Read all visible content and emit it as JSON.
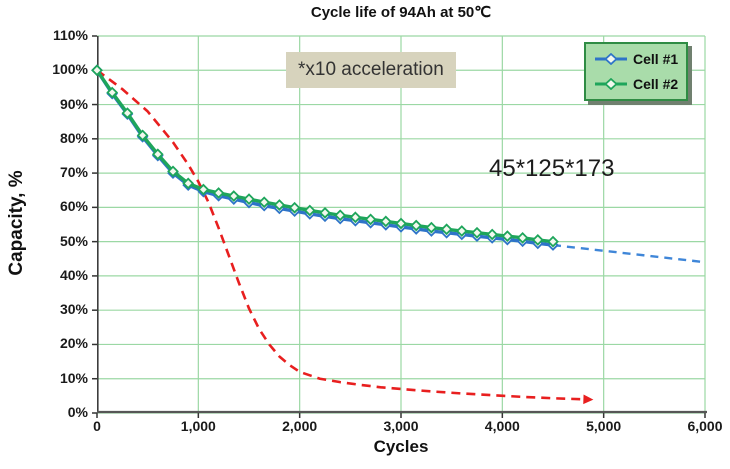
{
  "annotations": {
    "acceleration_note": "*x10 acceleration",
    "dimensions_note": "45*125*173"
  },
  "legend": {
    "items": [
      {
        "label": "Cell #1",
        "color": "#2e74c8"
      },
      {
        "label": "Cell #2",
        "color": "#1ea55b"
      }
    ]
  },
  "colors": {
    "grid": "#9bd8a4",
    "axis_left": "#3d3d3d",
    "axis_bottom": "#565656",
    "tick": "#333333",
    "marker_fill": "#f2f8ee",
    "legend_bg": "#a9dcaa",
    "legend_border": "#2f8c44",
    "legend_shadow": "#70806f",
    "note_bg": "#d7d3bd",
    "cell1": "#2e74c8",
    "cell2": "#1ea55b",
    "projection": "#3f86d8",
    "acceleration": "#e81f1f"
  },
  "chart_data": {
    "type": "line",
    "title": "Cycle life of 94Ah at  50℃",
    "xlabel": "Cycles",
    "ylabel": "Capacity, %",
    "xlim": [
      0,
      6000
    ],
    "ylim": [
      0,
      110
    ],
    "grid": true,
    "legend_position": "top-right-inside",
    "x_ticks": [
      {
        "value": 0,
        "label": "0"
      },
      {
        "value": 1000,
        "label": "1,000"
      },
      {
        "value": 2000,
        "label": "2,000"
      },
      {
        "value": 3000,
        "label": "3,000"
      },
      {
        "value": 4000,
        "label": "4,000"
      },
      {
        "value": 5000,
        "label": "5,000"
      },
      {
        "value": 6000,
        "label": "6,000"
      }
    ],
    "y_ticks": [
      {
        "value": 0,
        "label": "0%"
      },
      {
        "value": 10,
        "label": "10%"
      },
      {
        "value": 20,
        "label": "20%"
      },
      {
        "value": 30,
        "label": "30%"
      },
      {
        "value": 40,
        "label": "40%"
      },
      {
        "value": 50,
        "label": "50%"
      },
      {
        "value": 60,
        "label": "60%"
      },
      {
        "value": 70,
        "label": "70%"
      },
      {
        "value": 80,
        "label": "80%"
      },
      {
        "value": 90,
        "label": "90%"
      },
      {
        "value": 100,
        "label": "100%"
      },
      {
        "value": 110,
        "label": "110%"
      }
    ],
    "series": [
      {
        "name": "x10-acceleration-reference",
        "style": "dashed",
        "dash": [
          9,
          6
        ],
        "width": 2.6,
        "color": "#e81f1f",
        "arrow_end": true,
        "x": [
          0,
          250,
          500,
          750,
          900,
          1000,
          1100,
          1200,
          1300,
          1400,
          1500,
          1600,
          1700,
          1800,
          1900,
          2000,
          2200,
          2400,
          2600,
          2800,
          3000,
          3300,
          3600,
          3900,
          4200,
          4500,
          4800
        ],
        "y": [
          100,
          94.5,
          88,
          79,
          72.5,
          67.5,
          61.5,
          54,
          46,
          38,
          30.5,
          24.5,
          20,
          16.5,
          14,
          12,
          10,
          9,
          8.2,
          7.5,
          7,
          6.3,
          5.7,
          5.2,
          4.7,
          4.3,
          4
        ]
      },
      {
        "name": "cell1-projection",
        "style": "dashed",
        "dash": [
          8,
          6
        ],
        "width": 2.4,
        "color": "#3f86d8",
        "x": [
          4500,
          6000
        ],
        "y": [
          49,
          44
        ]
      },
      {
        "name": "cell1",
        "style": "solid",
        "width": 3.4,
        "color": "#2e74c8",
        "marker": "diamond",
        "x": [
          0,
          150,
          300,
          450,
          600,
          750,
          900,
          1050,
          1200,
          1350,
          1500,
          1650,
          1800,
          1950,
          2100,
          2250,
          2400,
          2550,
          2700,
          2850,
          3000,
          3150,
          3300,
          3450,
          3600,
          3750,
          3900,
          4050,
          4200,
          4350,
          4500
        ],
        "y": [
          100,
          93.2,
          87.2,
          80.6,
          75.1,
          70,
          66.5,
          64.6,
          63.4,
          62.4,
          61.4,
          60.5,
          59.7,
          58.9,
          58.1,
          57.4,
          56.7,
          56.1,
          55.5,
          54.9,
          54.3,
          53.7,
          53.1,
          52.6,
          52.1,
          51.6,
          51.1,
          50.6,
          50.1,
          49.5,
          49
        ]
      },
      {
        "name": "cell2",
        "style": "solid",
        "width": 3.4,
        "color": "#1ea55b",
        "marker": "diamond",
        "x": [
          0,
          150,
          300,
          450,
          600,
          750,
          900,
          1050,
          1200,
          1350,
          1500,
          1650,
          1800,
          1950,
          2100,
          2250,
          2400,
          2550,
          2700,
          2850,
          3000,
          3150,
          3300,
          3450,
          3600,
          3750,
          3900,
          4050,
          4200,
          4350,
          4500
        ],
        "y": [
          100,
          93.5,
          87.5,
          81,
          75.5,
          70.5,
          67,
          65.2,
          64.2,
          63.3,
          62.4,
          61.5,
          60.7,
          59.9,
          59.1,
          58.4,
          57.7,
          57.1,
          56.5,
          55.9,
          55.3,
          54.7,
          54.1,
          53.6,
          53.1,
          52.6,
          52.1,
          51.6,
          51.1,
          50.5,
          50
        ]
      }
    ]
  }
}
